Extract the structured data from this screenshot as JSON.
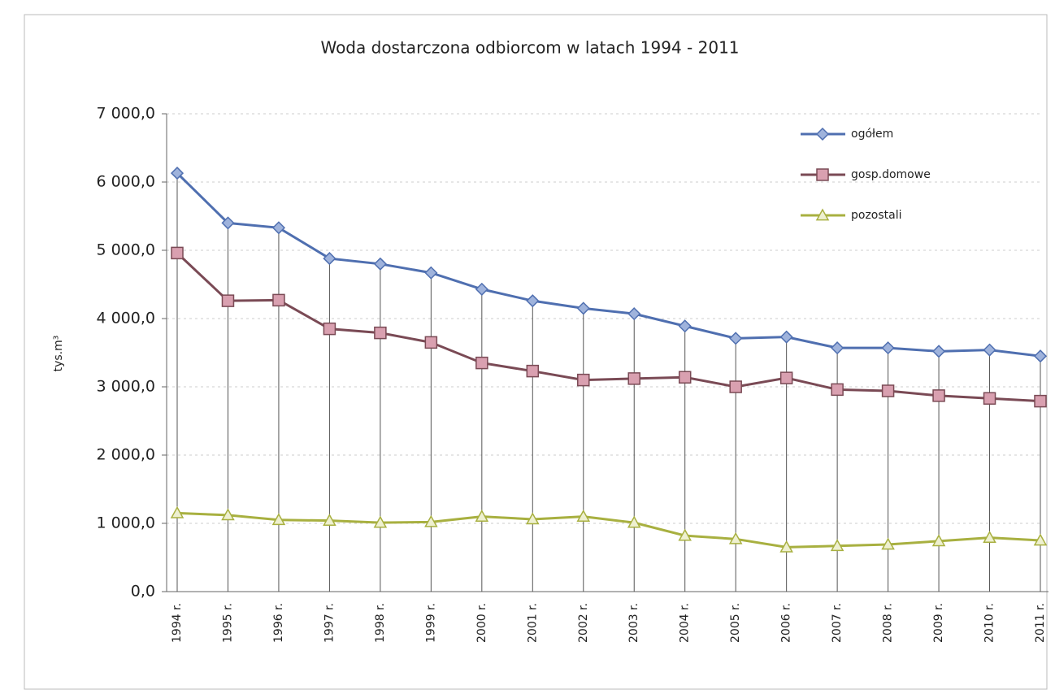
{
  "chart_data": {
    "type": "line",
    "title": "Woda dostarczona odbiorcom w latach 1994 - 2011",
    "y_label": "tys.m³",
    "categories": [
      "1994 r.",
      "1995 r.",
      "1996 r.",
      "1997 r.",
      "1998 r.",
      "1999 r.",
      "2000 r.",
      "2001 r.",
      "2002 r.",
      "2003 r.",
      "2004 r.",
      "2005 r.",
      "2006 r.",
      "2007 r.",
      "2008 r.",
      "2009 r.",
      "2010 r.",
      "2011 r."
    ],
    "series": [
      {
        "name": "ogółem",
        "color": "#4f6fb0",
        "marker": "diamond",
        "values": [
          6130,
          5400,
          5330,
          4880,
          4800,
          4670,
          4430,
          4260,
          4150,
          4070,
          3890,
          3710,
          3730,
          3570,
          3570,
          3520,
          3540,
          3450
        ]
      },
      {
        "name": "gosp.domowe",
        "color": "#7a4a55",
        "marker": "square",
        "values": [
          4960,
          4260,
          4270,
          3850,
          3790,
          3650,
          3350,
          3230,
          3100,
          3120,
          3140,
          3000,
          3130,
          2960,
          2940,
          2870,
          2830,
          2790
        ]
      },
      {
        "name": "pozostali",
        "color": "#a8b040",
        "marker": "triangle",
        "values": [
          1150,
          1120,
          1050,
          1040,
          1010,
          1020,
          1100,
          1060,
          1100,
          1010,
          820,
          770,
          650,
          670,
          690,
          740,
          790,
          750
        ]
      }
    ],
    "ylim": [
      0,
      7000
    ],
    "yticks": [
      {
        "value": 0,
        "label": "0,0"
      },
      {
        "value": 1000,
        "label": "1 000,0"
      },
      {
        "value": 2000,
        "label": "2 000,0"
      },
      {
        "value": 3000,
        "label": "3 000,0"
      },
      {
        "value": 4000,
        "label": "4 000,0"
      },
      {
        "value": 5000,
        "label": "5 000,0"
      },
      {
        "value": 6000,
        "label": "6 000,0"
      },
      {
        "value": 7000,
        "label": "7 000,0"
      }
    ],
    "grid": true,
    "drop_lines": true,
    "legend": "top-right"
  }
}
